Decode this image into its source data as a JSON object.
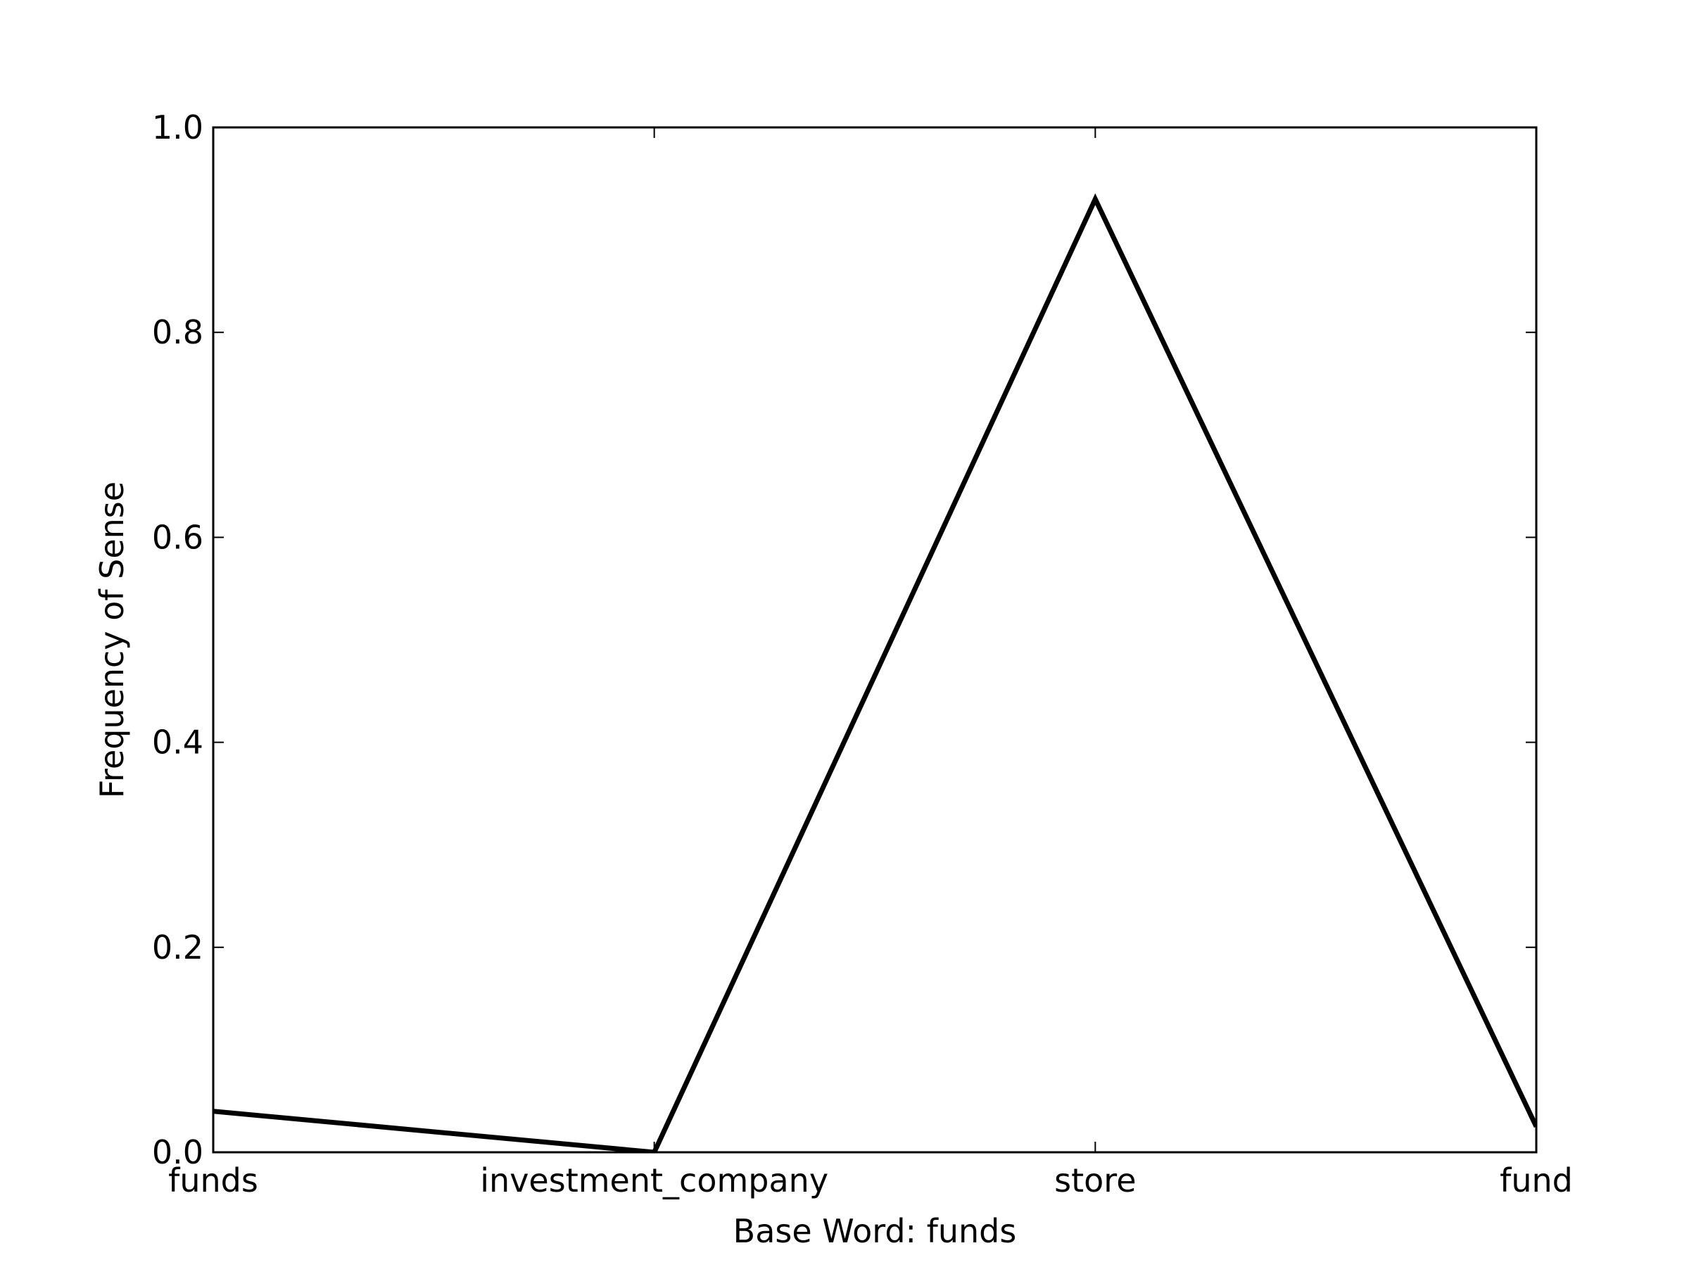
{
  "chart_data": {
    "type": "line",
    "title": "",
    "xlabel": "Base Word: funds",
    "ylabel": "Frequency of Sense",
    "categories": [
      "funds",
      "investment_company",
      "store",
      "fund"
    ],
    "series": [
      {
        "values": [
          0.04,
          0.0,
          0.93,
          0.025
        ],
        "color": "#000000"
      }
    ],
    "ylim": [
      0,
      1.0
    ],
    "yticks": [
      "0.0",
      "0.2",
      "0.4",
      "0.6",
      "0.8",
      "1.0"
    ],
    "grid": false,
    "legend": "none"
  }
}
